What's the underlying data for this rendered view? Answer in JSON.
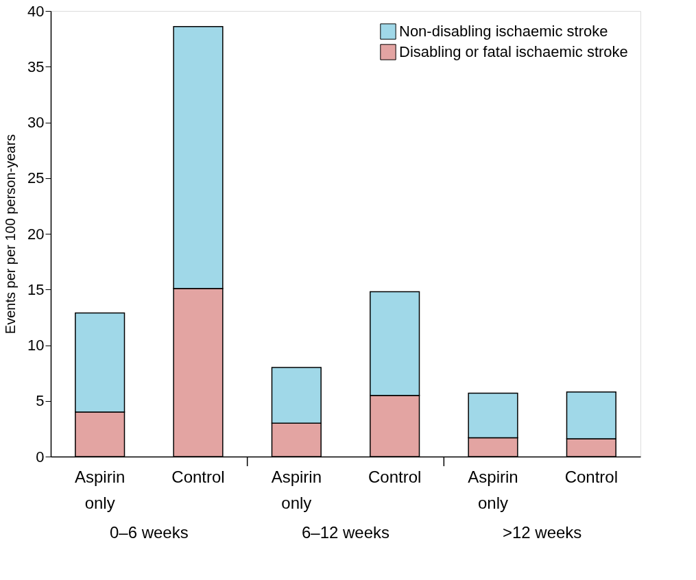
{
  "chart_data": {
    "type": "bar",
    "stacked": true,
    "ylabel": "Events per per 100 person-years",
    "categories": [
      "Aspirin only",
      "Control",
      "Aspirin only",
      "Control",
      "Aspirin only",
      "Control"
    ],
    "series": [
      {
        "name": "Disabling or fatal ischaemic stroke",
        "color": "#e3a4a2",
        "values": [
          4.0,
          15.1,
          3.0,
          5.5,
          1.7,
          1.6
        ]
      },
      {
        "name": "Non-disabling ischaemic stroke",
        "color": "#a0d8e8",
        "values": [
          8.9,
          23.5,
          5.0,
          9.3,
          4.0,
          4.2
        ]
      }
    ],
    "annotations": [
      "0–6 weeks",
      "6–12 weeks",
      ">12 weeks"
    ],
    "ylim": [
      0,
      40
    ],
    "yticks": [
      0,
      5,
      10,
      15,
      20,
      25,
      30,
      35,
      40
    ],
    "grid": false,
    "legend": "top right"
  }
}
